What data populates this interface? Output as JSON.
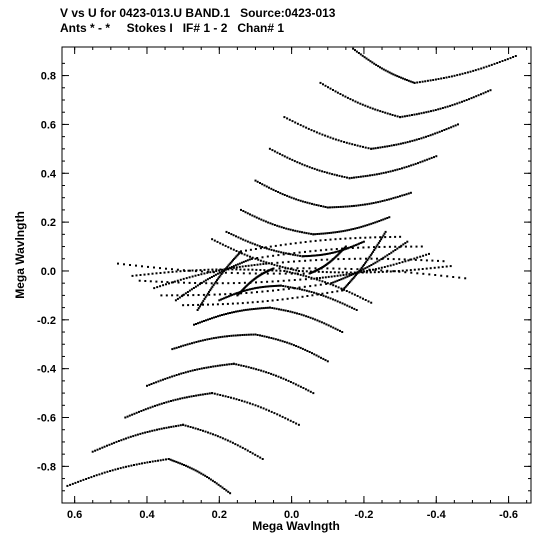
{
  "chart_data": {
    "type": "scatter",
    "title": "V vs U for 0423-013.U BAND.1   Source:0423-013",
    "subtitle": "Ants * - *     Stokes I   IF# 1 - 2   Chan# 1",
    "xlabel": "Mega Wavlngth",
    "ylabel": "Mega Wavlngth",
    "xlim": [
      0.635,
      -0.662
    ],
    "ylim": [
      -0.95,
      0.917
    ],
    "x_reversed": true,
    "xticks": [
      0.6,
      0.4,
      0.2,
      0.0,
      -0.2,
      -0.4,
      -0.6
    ],
    "xtick_labels": [
      "0.6",
      "0.4",
      "0.2",
      "0.0",
      "-0.2",
      "-0.4",
      "-0.6"
    ],
    "yticks": [
      0.8,
      0.6,
      0.4,
      0.2,
      0.0,
      -0.2,
      -0.4,
      -0.6,
      -0.8
    ],
    "ytick_labels": [
      "0.8",
      "0.6",
      "0.4",
      "0.2",
      "0.0",
      "-0.2",
      "-0.4",
      "-0.6",
      "-0.8"
    ],
    "marker_color": "#000000",
    "point_symmetry": "(u, v) and (-u, -v)",
    "tracks": [
      {
        "apex": [
          -0.34,
          0.77
        ],
        "left": [
          -0.17,
          0.91
        ],
        "right": [
          -0.62,
          0.88
        ]
      },
      {
        "apex": [
          -0.3,
          0.63
        ],
        "left": [
          -0.08,
          0.77
        ],
        "right": [
          -0.55,
          0.74
        ]
      },
      {
        "apex": [
          -0.22,
          0.5
        ],
        "left": [
          0.02,
          0.63
        ],
        "right": [
          -0.46,
          0.6
        ]
      },
      {
        "apex": [
          -0.16,
          0.38
        ],
        "left": [
          0.06,
          0.5
        ],
        "right": [
          -0.4,
          0.47
        ]
      },
      {
        "apex": [
          -0.1,
          0.26
        ],
        "left": [
          0.1,
          0.37
        ],
        "right": [
          -0.33,
          0.32
        ]
      },
      {
        "apex": [
          -0.06,
          0.15
        ],
        "left": [
          0.14,
          0.25
        ],
        "right": [
          -0.27,
          0.22
        ]
      },
      {
        "apex": [
          -0.03,
          0.06
        ],
        "left": [
          0.18,
          0.16
        ],
        "right": [
          -0.2,
          0.12
        ]
      },
      {
        "apex": [
          -0.02,
          0.0
        ],
        "left": [
          0.22,
          0.13
        ],
        "right": [
          -0.44,
          0.02
        ]
      },
      {
        "apex": [
          -0.05,
          -0.01
        ],
        "left": [
          0.48,
          0.03
        ],
        "right": [
          -0.15,
          0.1
        ]
      },
      {
        "apex": [
          -0.07,
          -0.03
        ],
        "left": [
          0.42,
          -0.04
        ],
        "right": [
          -0.38,
          0.07
        ]
      },
      {
        "apex": [
          -0.11,
          -0.05
        ],
        "left": [
          0.36,
          -0.1
        ],
        "right": [
          -0.32,
          0.12
        ]
      },
      {
        "apex": [
          -0.14,
          -0.08
        ],
        "left": [
          0.3,
          -0.14
        ],
        "right": [
          -0.26,
          0.16
        ]
      }
    ]
  }
}
